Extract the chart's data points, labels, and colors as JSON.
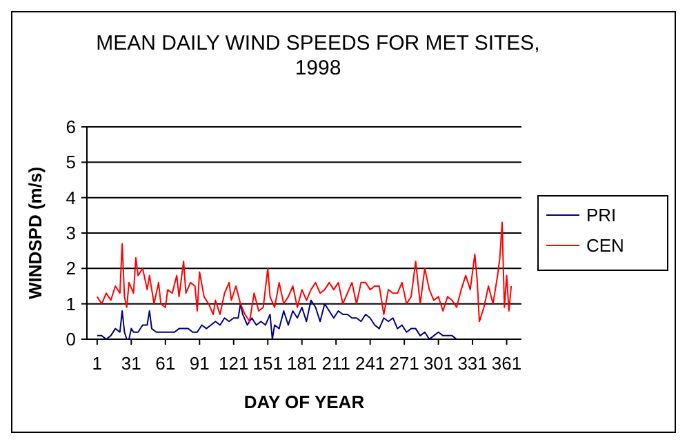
{
  "chart_data": {
    "type": "line",
    "title": "MEAN DAILY WIND SPEEDS FOR MET SITES, 1998",
    "xlabel": "DAY OF YEAR",
    "ylabel": "WINDSPD (m/s)",
    "xlim": [
      -8,
      374
    ],
    "xticks": [
      1,
      31,
      61,
      91,
      121,
      151,
      181,
      211,
      241,
      271,
      301,
      331,
      361
    ],
    "ylim": [
      0,
      6
    ],
    "yticks": [
      0,
      1,
      2,
      3,
      4,
      5,
      6
    ],
    "grid": "y",
    "legend": "right",
    "marker": "none",
    "series": [
      {
        "name": "PRI",
        "color": "#000080",
        "x": [
          1,
          5,
          9,
          13,
          17,
          21,
          23,
          25,
          27,
          29,
          31,
          33,
          37,
          41,
          45,
          47,
          49,
          53,
          57,
          61,
          65,
          69,
          73,
          77,
          81,
          85,
          89,
          93,
          97,
          101,
          105,
          109,
          113,
          117,
          121,
          125,
          127,
          129,
          133,
          137,
          141,
          145,
          149,
          153,
          155,
          157,
          161,
          165,
          169,
          173,
          177,
          181,
          185,
          189,
          193,
          197,
          201,
          205,
          209,
          213,
          217,
          221,
          225,
          229,
          233,
          237,
          241,
          245,
          249,
          253,
          257,
          261,
          265,
          269,
          273,
          277,
          281,
          285,
          289,
          293,
          297,
          301,
          305,
          309,
          313,
          317
        ],
        "values": [
          0.1,
          0.1,
          0.0,
          0.1,
          0.3,
          0.2,
          0.8,
          0.2,
          0.0,
          0.0,
          0.3,
          0.2,
          0.2,
          0.4,
          0.4,
          0.8,
          0.3,
          0.2,
          0.2,
          0.2,
          0.2,
          0.2,
          0.3,
          0.3,
          0.3,
          0.2,
          0.2,
          0.4,
          0.3,
          0.4,
          0.5,
          0.4,
          0.6,
          0.5,
          0.6,
          0.6,
          1.0,
          0.7,
          0.4,
          0.6,
          0.4,
          0.5,
          0.4,
          0.7,
          0.0,
          0.4,
          0.3,
          0.8,
          0.4,
          0.8,
          0.6,
          0.9,
          0.5,
          1.1,
          0.9,
          0.5,
          1.0,
          0.8,
          0.6,
          0.8,
          0.7,
          0.7,
          0.6,
          0.6,
          0.5,
          0.7,
          0.6,
          0.4,
          0.3,
          0.6,
          0.5,
          0.6,
          0.3,
          0.4,
          0.2,
          0.3,
          0.3,
          0.1,
          0.2,
          0.0,
          0.1,
          0.2,
          0.1,
          0.1,
          0.1,
          0.0
        ]
      },
      {
        "name": "CEN",
        "color": "#ff0000",
        "x": [
          1,
          5,
          9,
          13,
          17,
          21,
          23,
          25,
          27,
          29,
          33,
          35,
          37,
          41,
          45,
          47,
          51,
          55,
          57,
          61,
          63,
          67,
          71,
          73,
          77,
          79,
          83,
          87,
          89,
          91,
          95,
          99,
          103,
          105,
          109,
          113,
          117,
          119,
          123,
          127,
          131,
          135,
          139,
          143,
          147,
          151,
          153,
          157,
          161,
          165,
          169,
          173,
          177,
          181,
          185,
          189,
          193,
          197,
          201,
          205,
          209,
          213,
          217,
          221,
          225,
          229,
          233,
          237,
          241,
          245,
          249,
          253,
          257,
          261,
          265,
          269,
          273,
          277,
          281,
          285,
          289,
          293,
          297,
          301,
          305,
          309,
          313,
          317,
          321,
          325,
          329,
          333,
          335,
          337,
          339,
          341,
          345,
          349,
          353,
          355,
          357,
          359,
          361,
          363,
          365
        ],
        "values": [
          1.2,
          1.0,
          1.3,
          1.1,
          1.5,
          1.3,
          2.7,
          1.2,
          0.9,
          1.6,
          1.3,
          2.3,
          1.8,
          2.0,
          1.4,
          1.8,
          1.0,
          1.6,
          1.0,
          0.9,
          1.4,
          1.3,
          1.8,
          1.2,
          2.2,
          1.3,
          1.6,
          1.5,
          0.8,
          1.9,
          1.2,
          1.0,
          0.7,
          1.1,
          0.7,
          1.3,
          1.6,
          1.1,
          1.5,
          1.0,
          0.7,
          0.5,
          1.3,
          0.8,
          0.9,
          2.0,
          1.2,
          0.9,
          1.6,
          1.0,
          1.2,
          1.5,
          0.9,
          1.4,
          1.1,
          1.4,
          1.6,
          1.3,
          1.4,
          1.6,
          1.4,
          1.6,
          1.0,
          1.3,
          1.6,
          1.0,
          1.6,
          1.6,
          1.4,
          1.5,
          1.5,
          0.7,
          1.4,
          1.3,
          1.3,
          1.6,
          1.0,
          1.2,
          2.2,
          1.0,
          2.0,
          1.4,
          1.1,
          1.2,
          0.8,
          1.2,
          1.1,
          0.9,
          1.4,
          1.8,
          1.4,
          2.4,
          1.7,
          0.5,
          0.7,
          0.9,
          1.5,
          1.0,
          1.8,
          2.3,
          3.3,
          0.9,
          1.8,
          0.8,
          1.5
        ]
      }
    ]
  }
}
